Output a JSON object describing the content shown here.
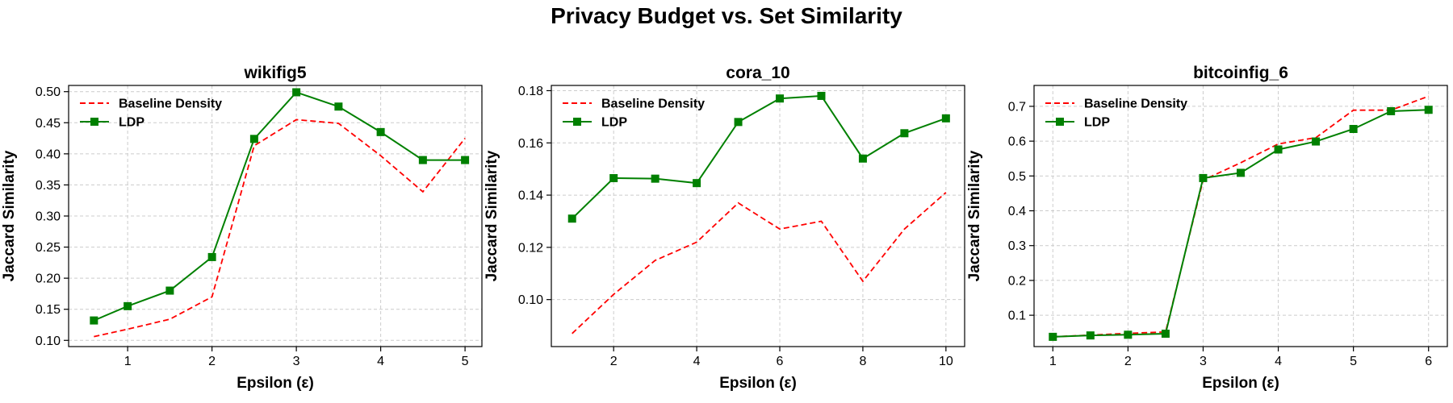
{
  "suptitle": "Privacy Budget vs. Set Similarity",
  "colors": {
    "baseline": "#ff0000",
    "ldp": "#008000",
    "grid": "#cccccc"
  },
  "chart_data": [
    {
      "type": "line",
      "title": "wikifig5",
      "xlabel": "Epsilon (ε)",
      "ylabel": "Jaccard Similarity",
      "xlim": [
        0.3,
        5.2
      ],
      "ylim": [
        0.09,
        0.51
      ],
      "xticks": [
        1,
        2,
        3,
        4,
        5
      ],
      "xtick_labels": [
        "1",
        "2",
        "3",
        "4",
        "5"
      ],
      "yticks": [
        0.1,
        0.15,
        0.2,
        0.25,
        0.3,
        0.35,
        0.4,
        0.45,
        0.5
      ],
      "ytick_labels": [
        "0.10",
        "0.15",
        "0.20",
        "0.25",
        "0.30",
        "0.35",
        "0.40",
        "0.45",
        "0.50"
      ],
      "x": [
        0.6,
        1.0,
        1.5,
        2.0,
        2.5,
        3.0,
        3.5,
        4.0,
        4.5,
        5.0
      ],
      "grid": true,
      "legend_position": "upper left",
      "series": [
        {
          "name": "Baseline Density",
          "style": "dashed",
          "marker": "none",
          "color": "#ff0000",
          "values": [
            0.106,
            0.118,
            0.134,
            0.17,
            0.413,
            0.455,
            0.449,
            0.397,
            0.339,
            0.425
          ]
        },
        {
          "name": "LDP",
          "style": "solid",
          "marker": "square",
          "color": "#008000",
          "values": [
            0.132,
            0.155,
            0.18,
            0.234,
            0.424,
            0.499,
            0.476,
            0.435,
            0.39,
            0.39
          ]
        }
      ]
    },
    {
      "type": "line",
      "title": "cora_10",
      "xlabel": "Epsilon (ε)",
      "ylabel": "Jaccard Similarity",
      "xlim": [
        0.5,
        10.45
      ],
      "ylim": [
        0.082,
        0.182
      ],
      "xticks": [
        2,
        4,
        6,
        8,
        10
      ],
      "xtick_labels": [
        "2",
        "4",
        "6",
        "8",
        "10"
      ],
      "yticks": [
        0.1,
        0.12,
        0.14,
        0.16,
        0.18
      ],
      "ytick_labels": [
        "0.10",
        "0.12",
        "0.14",
        "0.16",
        "0.18"
      ],
      "x": [
        1,
        2,
        3,
        4,
        5,
        6,
        7,
        8,
        9,
        10
      ],
      "grid": true,
      "legend_position": "upper left",
      "series": [
        {
          "name": "Baseline Density",
          "style": "dashed",
          "marker": "none",
          "color": "#ff0000",
          "values": [
            0.087,
            0.102,
            0.115,
            0.122,
            0.137,
            0.127,
            0.13,
            0.107,
            0.127,
            0.141
          ]
        },
        {
          "name": "LDP",
          "style": "solid",
          "marker": "square",
          "color": "#008000",
          "values": [
            0.131,
            0.1465,
            0.1463,
            0.1446,
            0.168,
            0.177,
            0.178,
            0.154,
            0.1637,
            0.1694
          ]
        }
      ]
    },
    {
      "type": "line",
      "title": "bitcoinfig_6",
      "xlabel": "Epsilon (ε)",
      "ylabel": "Jaccard Similarity",
      "xlim": [
        0.75,
        6.25
      ],
      "ylim": [
        0.01,
        0.76
      ],
      "xticks": [
        1,
        2,
        3,
        4,
        5,
        6
      ],
      "xtick_labels": [
        "1",
        "2",
        "3",
        "4",
        "5",
        "6"
      ],
      "yticks": [
        0.1,
        0.2,
        0.3,
        0.4,
        0.5,
        0.6,
        0.7
      ],
      "ytick_labels": [
        "0.1",
        "0.2",
        "0.3",
        "0.4",
        "0.5",
        "0.6",
        "0.7"
      ],
      "x": [
        1.0,
        1.5,
        2.0,
        2.5,
        3.0,
        3.5,
        4.0,
        4.5,
        5.0,
        5.5,
        6.0
      ],
      "grid": true,
      "legend_position": "upper left",
      "series": [
        {
          "name": "Baseline Density",
          "style": "dashed",
          "marker": "none",
          "color": "#ff0000",
          "values": [
            0.038,
            0.043,
            0.048,
            0.052,
            0.488,
            0.538,
            0.592,
            0.61,
            0.689,
            0.689,
            0.729
          ]
        },
        {
          "name": "LDP",
          "style": "solid",
          "marker": "square",
          "color": "#008000",
          "values": [
            0.038,
            0.042,
            0.044,
            0.047,
            0.494,
            0.509,
            0.576,
            0.599,
            0.635,
            0.686,
            0.69
          ]
        }
      ]
    }
  ]
}
